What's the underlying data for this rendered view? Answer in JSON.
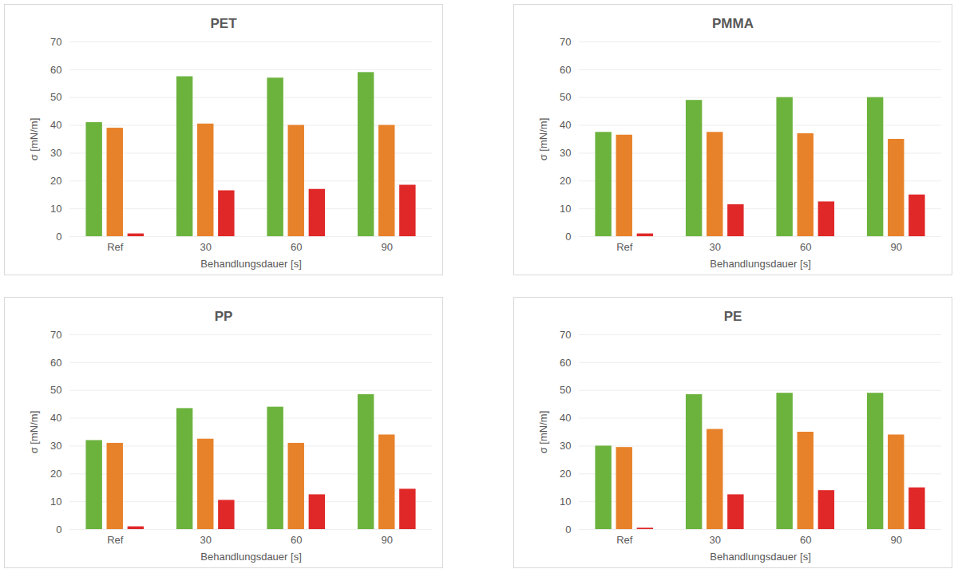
{
  "chart_data": [
    {
      "type": "bar",
      "title": "PET",
      "xlabel": "Behandlungsdauer [s]",
      "ylabel": "σ [mN/m]",
      "categories": [
        "Ref",
        "30",
        "60",
        "90"
      ],
      "series": [
        {
          "color": "#6cb33e",
          "values": [
            41,
            57.5,
            57,
            59
          ]
        },
        {
          "color": "#e8822a",
          "values": [
            39,
            40.5,
            40,
            40
          ]
        },
        {
          "color": "#e02828",
          "values": [
            1,
            16.5,
            17,
            18.5
          ]
        }
      ],
      "ylim": [
        0,
        70
      ],
      "yticks": [
        0,
        10,
        20,
        30,
        40,
        50,
        60,
        70
      ],
      "grid": true
    },
    {
      "type": "bar",
      "title": "PMMA",
      "xlabel": "Behandlungsdauer [s]",
      "ylabel": "σ [mN/m]",
      "categories": [
        "Ref",
        "30",
        "60",
        "90"
      ],
      "series": [
        {
          "color": "#6cb33e",
          "values": [
            37.5,
            49,
            50,
            50
          ]
        },
        {
          "color": "#e8822a",
          "values": [
            36.5,
            37.5,
            37,
            35
          ]
        },
        {
          "color": "#e02828",
          "values": [
            1,
            11.5,
            12.5,
            15
          ]
        }
      ],
      "ylim": [
        0,
        70
      ],
      "yticks": [
        0,
        10,
        20,
        30,
        40,
        50,
        60,
        70
      ],
      "grid": true
    },
    {
      "type": "bar",
      "title": "PP",
      "xlabel": "Behandlungsdauer [s]",
      "ylabel": "σ [mN/m]",
      "categories": [
        "Ref",
        "30",
        "60",
        "90"
      ],
      "series": [
        {
          "color": "#6cb33e",
          "values": [
            32,
            43.5,
            44,
            48.5
          ]
        },
        {
          "color": "#e8822a",
          "values": [
            31,
            32.5,
            31,
            34
          ]
        },
        {
          "color": "#e02828",
          "values": [
            1,
            10.5,
            12.5,
            14.5
          ]
        }
      ],
      "ylim": [
        0,
        70
      ],
      "yticks": [
        0,
        10,
        20,
        30,
        40,
        50,
        60,
        70
      ],
      "grid": true
    },
    {
      "type": "bar",
      "title": "PE",
      "xlabel": "Behandlungsdauer [s]",
      "ylabel": "σ [mN/m]",
      "categories": [
        "Ref",
        "30",
        "60",
        "90"
      ],
      "series": [
        {
          "color": "#6cb33e",
          "values": [
            30,
            48.5,
            49,
            49
          ]
        },
        {
          "color": "#e8822a",
          "values": [
            29.5,
            36,
            35,
            34
          ]
        },
        {
          "color": "#e02828",
          "values": [
            0.5,
            12.5,
            14,
            15
          ]
        }
      ],
      "ylim": [
        0,
        70
      ],
      "yticks": [
        0,
        10,
        20,
        30,
        40,
        50,
        60,
        70
      ],
      "grid": true
    }
  ]
}
